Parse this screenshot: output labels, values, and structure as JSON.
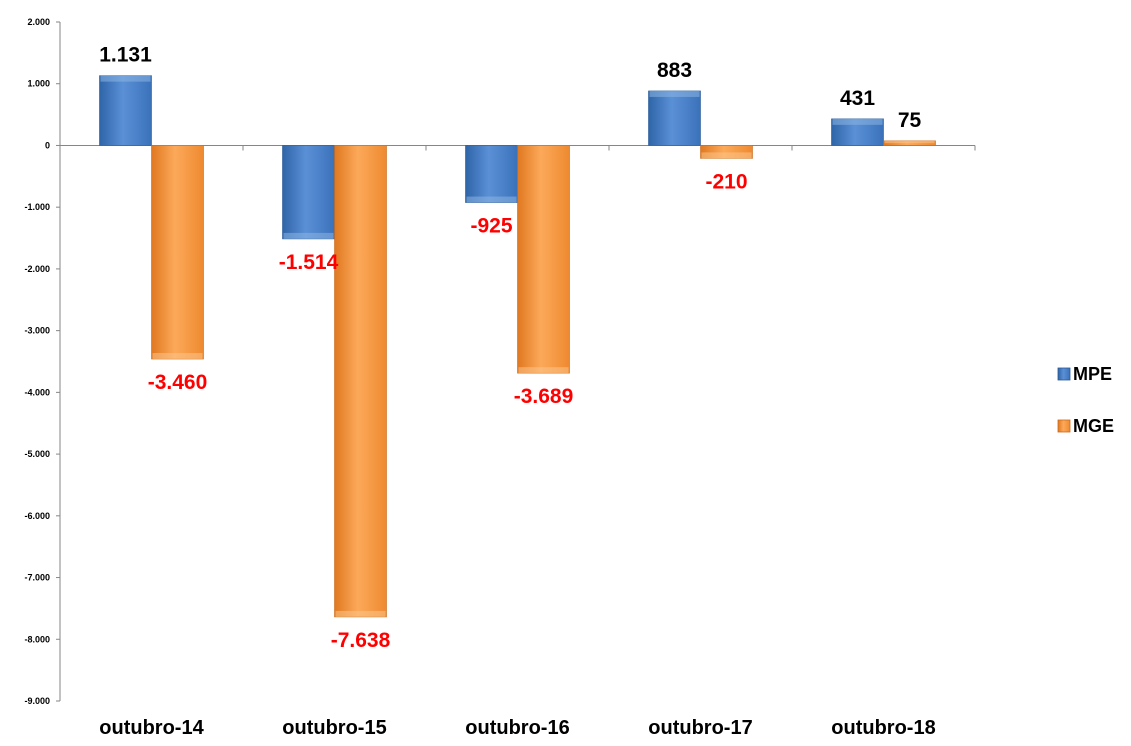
{
  "chart_data": {
    "type": "bar",
    "categories": [
      "outubro-14",
      "outubro-15",
      "outubro-16",
      "outubro-17",
      "outubro-18"
    ],
    "series": [
      {
        "name": "MPE",
        "values": [
          1131,
          -1514,
          -925,
          883,
          431
        ],
        "labels": [
          "1.131",
          "-1.514",
          "-925",
          "883",
          "431"
        ],
        "color": "#4F81BD"
      },
      {
        "name": "MGE",
        "values": [
          -3460,
          -7638,
          -3689,
          -210,
          75
        ],
        "labels": [
          "-3.460",
          "-7.638",
          "-3.689",
          "-210",
          "75"
        ],
        "color": "#F79646"
      }
    ],
    "y_ticks": [
      2000,
      1000,
      0,
      -1000,
      -2000,
      -3000,
      -4000,
      -5000,
      -6000,
      -7000,
      -8000,
      -9000
    ],
    "y_tick_labels": [
      "2.000",
      "1.000",
      "0",
      "-1.000",
      "-2.000",
      "-3.000",
      "-4.000",
      "-5.000",
      "-6.000",
      "-7.000",
      "-8.000",
      "-9.000"
    ],
    "ylim": [
      -9000,
      2000
    ],
    "positive_label_color": "#000000",
    "negative_label_color": "#FF0000",
    "grid": false,
    "legend_position": "right"
  }
}
